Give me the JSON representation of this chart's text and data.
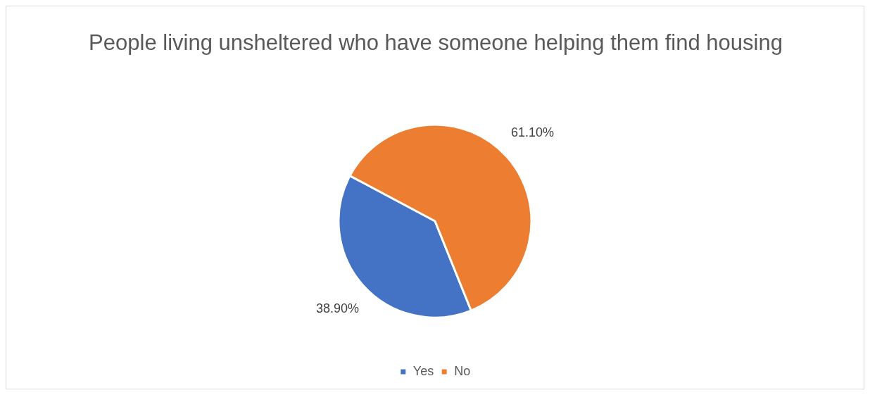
{
  "chart_data": {
    "type": "pie",
    "title": "People living unsheltered who have someone helping them find housing",
    "categories": [
      "Yes",
      "No"
    ],
    "values": [
      38.9,
      61.1
    ],
    "colors": [
      "#4472c4",
      "#ed7d31"
    ],
    "value_labels": [
      "38.90%",
      "61.10%"
    ],
    "legend": "bottom"
  }
}
